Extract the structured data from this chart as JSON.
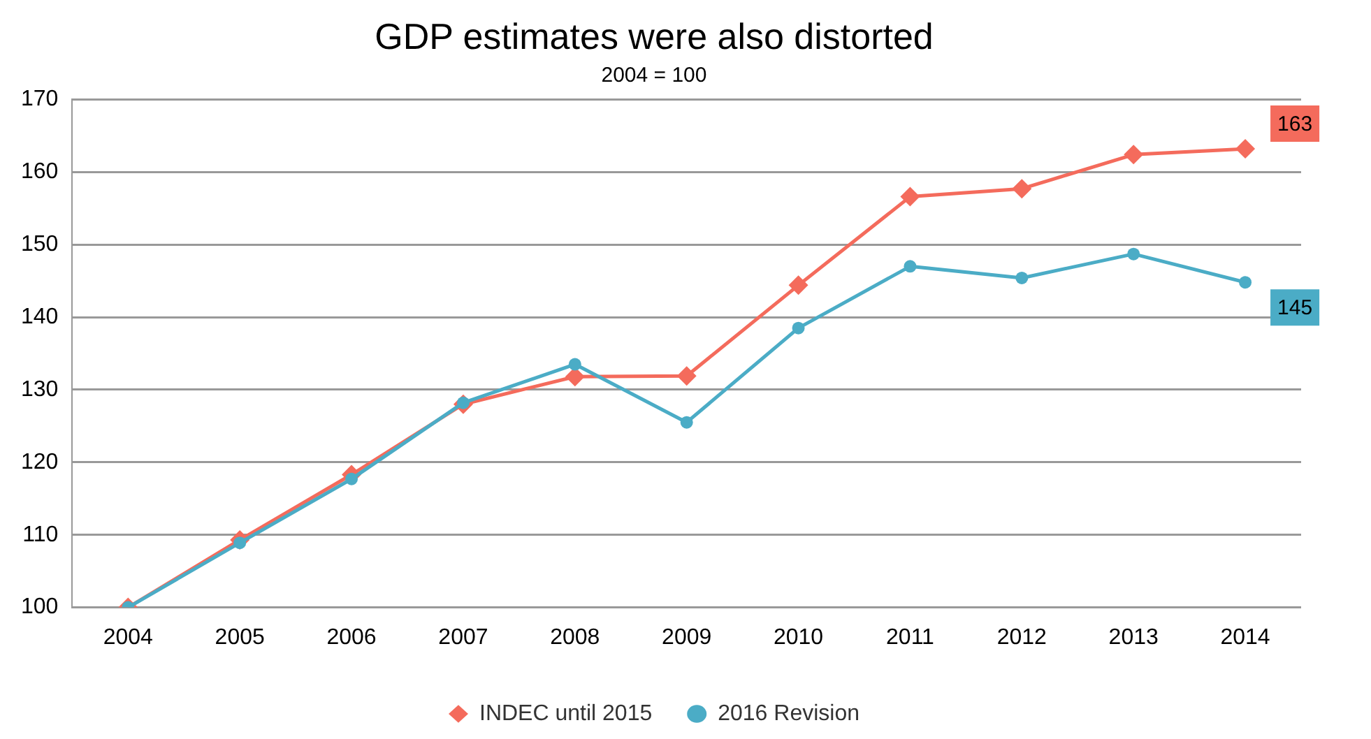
{
  "chart_data": {
    "type": "line",
    "title": "GDP estimates were also distorted",
    "subtitle": "2004 = 100",
    "categories": [
      "2004",
      "2005",
      "2006",
      "2007",
      "2008",
      "2009",
      "2010",
      "2011",
      "2012",
      "2013",
      "2014"
    ],
    "series": [
      {
        "name": "INDEC until 2015",
        "color": "#f46b5c",
        "marker": "diamond",
        "values": [
          100,
          109.3,
          118.3,
          128.0,
          131.8,
          131.9,
          144.4,
          156.6,
          157.7,
          162.4,
          163.2
        ],
        "value_labels": [
          null,
          null,
          null,
          null,
          null,
          null,
          null,
          null,
          null,
          null,
          "163"
        ]
      },
      {
        "name": "2016 Revision",
        "color": "#4bacc6",
        "marker": "circle",
        "values": [
          100,
          108.9,
          117.7,
          128.2,
          133.5,
          125.5,
          138.5,
          147.0,
          145.4,
          148.7,
          144.8
        ],
        "value_labels": [
          null,
          null,
          null,
          null,
          null,
          null,
          null,
          null,
          null,
          null,
          "145"
        ]
      }
    ],
    "ylim": [
      100,
      170
    ],
    "yticks": [
      100,
      110,
      120,
      130,
      140,
      150,
      160,
      170
    ],
    "grid": "y",
    "legend": "bottom"
  }
}
